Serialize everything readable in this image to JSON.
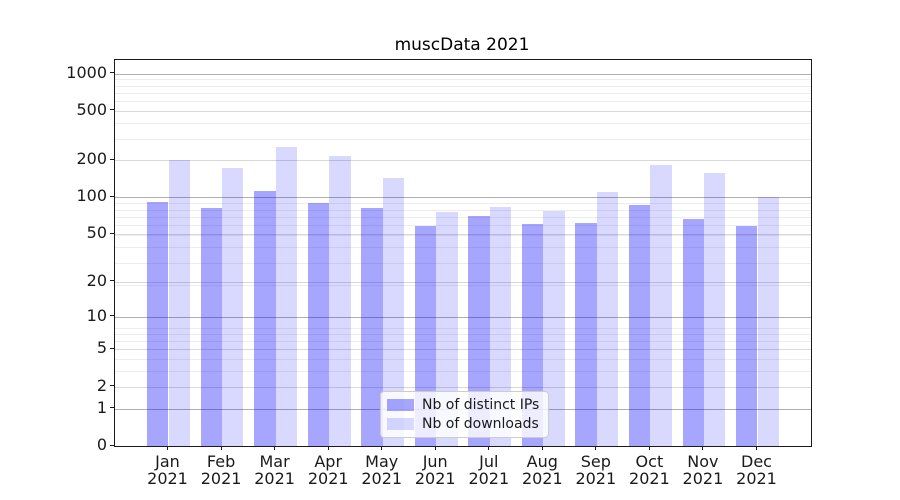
{
  "chart_data": {
    "type": "bar",
    "title": "muscData 2021",
    "categories": [
      {
        "label": "Jan",
        "sublabel": "2021"
      },
      {
        "label": "Feb",
        "sublabel": "2021"
      },
      {
        "label": "Mar",
        "sublabel": "2021"
      },
      {
        "label": "Apr",
        "sublabel": "2021"
      },
      {
        "label": "May",
        "sublabel": "2021"
      },
      {
        "label": "Jun",
        "sublabel": "2021"
      },
      {
        "label": "Jul",
        "sublabel": "2021"
      },
      {
        "label": "Aug",
        "sublabel": "2021"
      },
      {
        "label": "Sep",
        "sublabel": "2021"
      },
      {
        "label": "Oct",
        "sublabel": "2021"
      },
      {
        "label": "Nov",
        "sublabel": "2021"
      },
      {
        "label": "Dec",
        "sublabel": "2021"
      }
    ],
    "series": [
      {
        "name": "Nb of distinct IPs",
        "color": "rgba(0,0,255,0.35)",
        "values": [
          92,
          81,
          112,
          89,
          81,
          58,
          70,
          60,
          62,
          86,
          66,
          58
        ]
      },
      {
        "name": "Nb of downloads",
        "color": "rgba(0,0,255,0.15)",
        "values": [
          199,
          174,
          255,
          215,
          143,
          76,
          84,
          77,
          110,
          183,
          158,
          100
        ]
      }
    ],
    "xlabel": "",
    "ylabel": "",
    "grid": true,
    "legend_position": "lower center",
    "y_axis": {
      "scale": "log10(value+1)",
      "ticks": [
        0,
        1,
        2,
        5,
        10,
        20,
        50,
        100,
        200,
        500,
        1000
      ],
      "emphasis_ticks": [
        1,
        10,
        100,
        1000
      ],
      "top_value": 1285,
      "minor_gridlines_vplus1": [
        4,
        5,
        7,
        8,
        9,
        20,
        30,
        40,
        50,
        60,
        70,
        80,
        90,
        300,
        400,
        600,
        700,
        800,
        900
      ]
    }
  },
  "colors": {
    "grid_major": "#b0b0b0",
    "grid_labeled": "#d9d9d9",
    "grid_minor": "#ededed",
    "spine": "#1a1a1a",
    "text": "#1a1a1a",
    "legend_bg": "rgba(255,255,255,0.8)",
    "legend_border": "#cccccc"
  }
}
